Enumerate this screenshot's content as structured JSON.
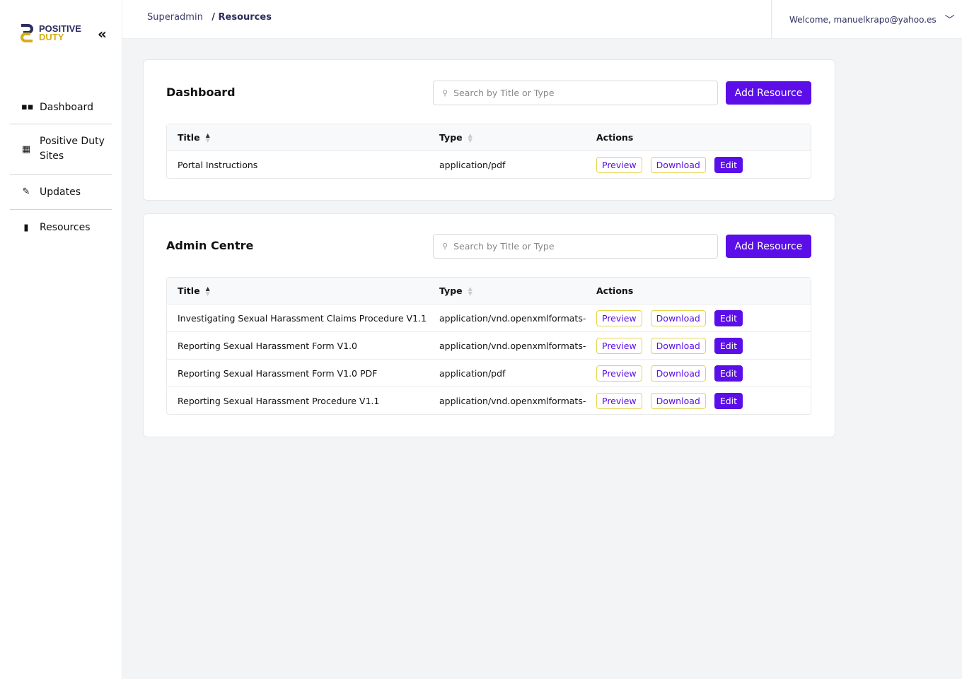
{
  "brand": {
    "line1": "POSITIVE",
    "line2": "DUTY",
    "colors": {
      "navy": "#2b2d5e",
      "gold": "#d4ae1e"
    }
  },
  "sidebar": {
    "items": [
      {
        "label": "Dashboard",
        "icon": "grid-icon"
      },
      {
        "label": "Positive Duty Sites",
        "icon": "building-icon"
      },
      {
        "label": "Updates",
        "icon": "edit-icon"
      },
      {
        "label": "Resources",
        "icon": "document-icon"
      }
    ]
  },
  "header": {
    "breadcrumb": [
      "Superadmin",
      "/ Resources"
    ],
    "welcome": "Welcome, manuelkrapo@yahoo.es"
  },
  "accent": "#5b0ee8",
  "sections": [
    {
      "title": "Dashboard",
      "search_placeholder": "Search by Title or Type",
      "add_label": "Add Resource",
      "columns": [
        "Title",
        "Type",
        "Actions"
      ],
      "rows": [
        {
          "title": "Portal Instructions",
          "type": "application/pdf"
        }
      ]
    },
    {
      "title": "Admin Centre",
      "search_placeholder": "Search by Title or Type",
      "add_label": "Add Resource",
      "columns": [
        "Title",
        "Type",
        "Actions"
      ],
      "rows": [
        {
          "title": "Investigating Sexual Harassment Claims Procedure V1.1",
          "type": "application/vnd.openxmlformats-..."
        },
        {
          "title": "Reporting Sexual Harassment Form V1.0",
          "type": "application/vnd.openxmlformats-..."
        },
        {
          "title": "Reporting Sexual Harassment Form V1.0 PDF",
          "type": "application/pdf"
        },
        {
          "title": "Reporting Sexual Harassment Procedure V1.1",
          "type": "application/vnd.openxmlformats-..."
        }
      ]
    }
  ],
  "actions": {
    "preview": "Preview",
    "download": "Download",
    "edit": "Edit"
  }
}
